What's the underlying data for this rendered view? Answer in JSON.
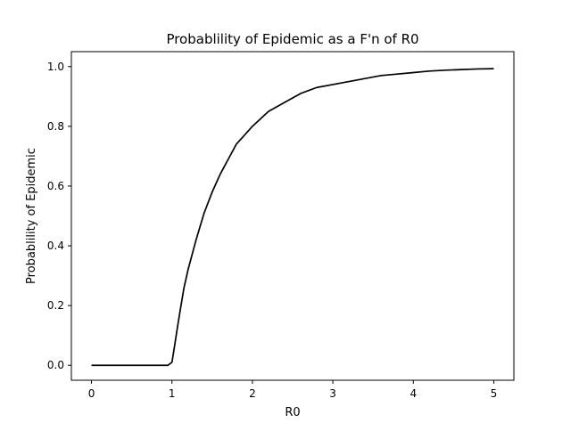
{
  "chart_data": {
    "type": "line",
    "title": "Probablility of Epidemic as a F'n of R0",
    "xlabel": "R0",
    "ylabel": "Probablility of Epidemic",
    "xlim": [
      -0.25,
      5.25
    ],
    "ylim": [
      -0.05,
      1.05
    ],
    "xticks": [
      0,
      1,
      2,
      3,
      4,
      5
    ],
    "yticks": [
      0.0,
      0.2,
      0.4,
      0.6,
      0.8,
      1.0
    ],
    "xtick_labels": [
      "0",
      "1",
      "2",
      "3",
      "4",
      "5"
    ],
    "ytick_labels": [
      "0.0",
      "0.2",
      "0.4",
      "0.6",
      "0.8",
      "1.0"
    ],
    "grid": false,
    "series": [
      {
        "color": "#000000",
        "x": [
          0.0,
          0.25,
          0.5,
          0.75,
          0.95,
          1.0,
          1.03,
          1.07,
          1.1,
          1.15,
          1.2,
          1.3,
          1.4,
          1.5,
          1.6,
          1.7,
          1.8,
          1.9,
          2.0,
          2.2,
          2.4,
          2.6,
          2.8,
          3.0,
          3.2,
          3.4,
          3.6,
          3.8,
          4.0,
          4.2,
          4.4,
          4.6,
          4.8,
          5.0
        ],
        "y": [
          0.0,
          0.0,
          0.0,
          0.0,
          0.0,
          0.01,
          0.06,
          0.13,
          0.18,
          0.26,
          0.32,
          0.42,
          0.51,
          0.58,
          0.64,
          0.69,
          0.74,
          0.77,
          0.8,
          0.85,
          0.88,
          0.91,
          0.93,
          0.94,
          0.95,
          0.96,
          0.97,
          0.975,
          0.98,
          0.985,
          0.988,
          0.99,
          0.992,
          0.993
        ]
      }
    ]
  }
}
